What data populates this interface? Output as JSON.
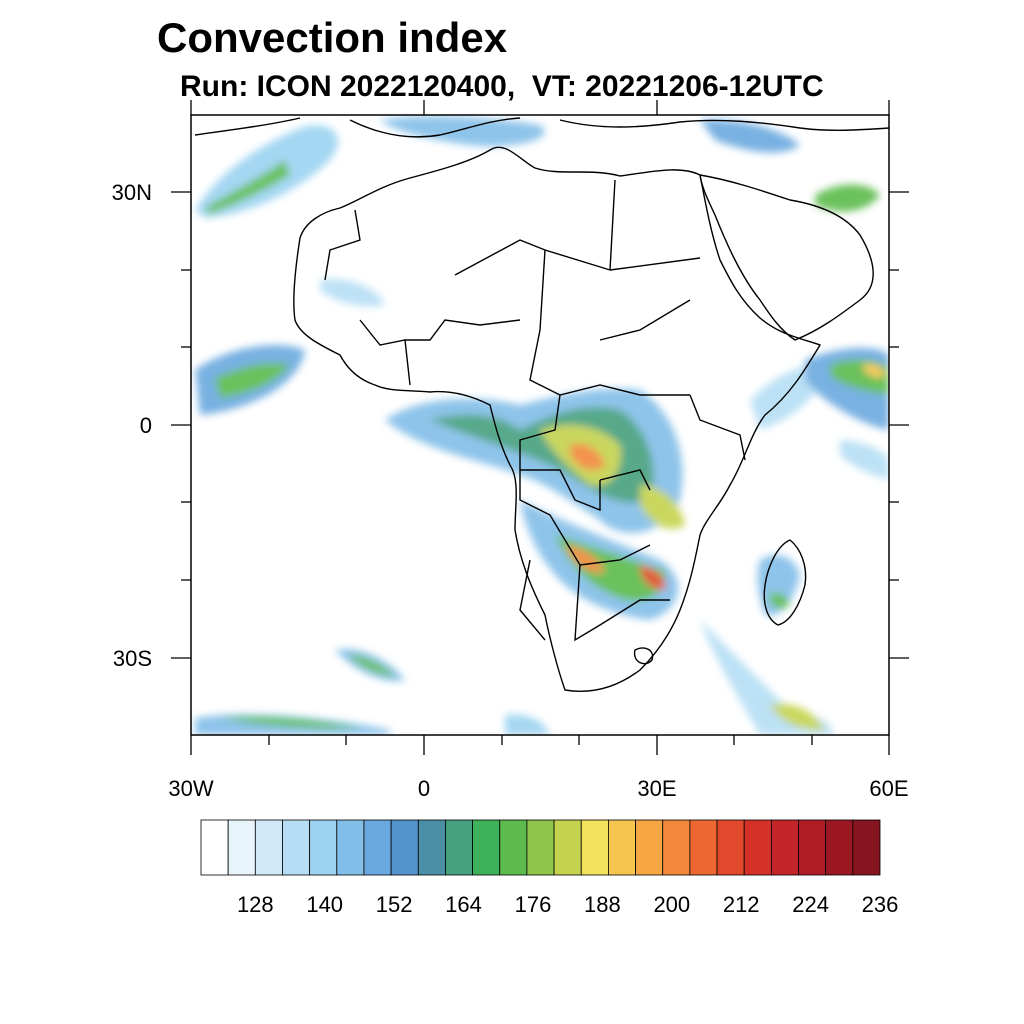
{
  "title": "Convection index",
  "subtitle": "Run: ICON 2022120400,  VT: 20221206-12UTC",
  "map": {
    "lon_range": [
      -30,
      60
    ],
    "lat_range": [
      -40,
      40
    ],
    "lon_ticks": [
      {
        "value": -30,
        "label": "30W"
      },
      {
        "value": 0,
        "label": "0"
      },
      {
        "value": 30,
        "label": "30E"
      },
      {
        "value": 60,
        "label": "60E"
      }
    ],
    "lat_ticks": [
      {
        "value": 30,
        "label": "30N"
      },
      {
        "value": 0,
        "label": "0"
      },
      {
        "value": -30,
        "label": "30S"
      }
    ]
  },
  "colorbar": {
    "labels": [
      "128",
      "140",
      "152",
      "164",
      "176",
      "188",
      "200",
      "212",
      "224",
      "236"
    ],
    "colors": [
      "#ffffff",
      "#e8f4fb",
      "#cfe9f7",
      "#b5def4",
      "#9bd3f1",
      "#82bee8",
      "#6aa9df",
      "#5494cd",
      "#4b8fa6",
      "#45a07e",
      "#3fb15a",
      "#5cbb4c",
      "#8ec54a",
      "#c4d34e",
      "#f2e15a",
      "#f6c54f",
      "#f7a644",
      "#f3873a",
      "#ec6731",
      "#e2482b",
      "#d53129",
      "#c42528",
      "#b01c25",
      "#9b1822",
      "#861520"
    ]
  }
}
